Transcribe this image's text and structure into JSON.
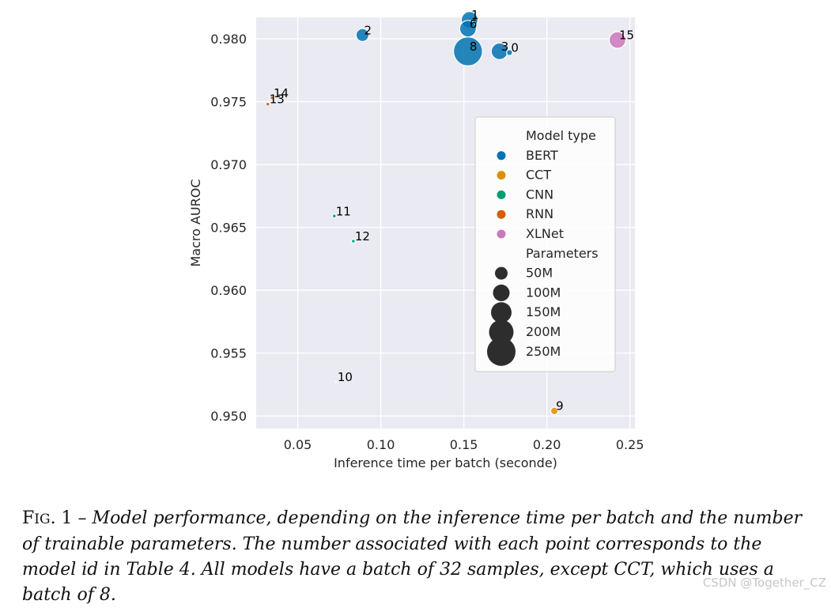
{
  "chart_data": {
    "type": "scatter",
    "xlabel": "Inference time per batch (seconde)",
    "ylabel": "Macro AUROC",
    "xlim": [
      0.025,
      0.253
    ],
    "ylim": [
      0.949,
      0.9817
    ],
    "xticks": [
      0.05,
      0.1,
      0.15,
      0.2,
      0.25
    ],
    "xtick_labels": [
      "0.05",
      "0.10",
      "0.15",
      "0.20",
      "0.25"
    ],
    "yticks": [
      0.95,
      0.955,
      0.96,
      0.965,
      0.97,
      0.975,
      0.98
    ],
    "ytick_labels": [
      "0.950",
      "0.955",
      "0.960",
      "0.965",
      "0.970",
      "0.975",
      "0.980"
    ],
    "grid": true,
    "legend_position": "center-right",
    "series": [
      {
        "name": "BERT",
        "color": "#0173b2",
        "points": [
          {
            "id": "1",
            "x": 0.1535,
            "y": 0.9815,
            "size": 110
          },
          {
            "id": "2",
            "x": 0.089,
            "y": 0.9803,
            "size": 66
          },
          {
            "id": "6",
            "x": 0.1525,
            "y": 0.9808,
            "size": 110
          },
          {
            "id": "8",
            "x": 0.1525,
            "y": 0.979,
            "size": 335
          },
          {
            "id": "3",
            "x": 0.1715,
            "y": 0.979,
            "size": 110
          },
          {
            "id": "0",
            "x": 0.1775,
            "y": 0.9789,
            "size": 14
          }
        ]
      },
      {
        "name": "CCT",
        "color": "#de8f05",
        "points": [
          {
            "id": "9",
            "x": 0.2045,
            "y": 0.9504,
            "size": 22
          }
        ]
      },
      {
        "name": "CNN",
        "color": "#029e73",
        "points": [
          {
            "id": "11",
            "x": 0.072,
            "y": 0.9659,
            "size": 6
          },
          {
            "id": "12",
            "x": 0.0835,
            "y": 0.9639,
            "size": 6
          },
          {
            "id": "10",
            "x": 0.073,
            "y": 0.9527,
            "size": 0.7
          }
        ]
      },
      {
        "name": "RNN",
        "color": "#d55e00",
        "points": [
          {
            "id": "14",
            "x": 0.0345,
            "y": 0.9753,
            "size": 6
          },
          {
            "id": "13",
            "x": 0.032,
            "y": 0.9748,
            "size": 6
          }
        ]
      },
      {
        "name": "XLNet",
        "color": "#cc78bc",
        "points": [
          {
            "id": "15",
            "x": 0.2425,
            "y": 0.9799,
            "size": 110
          }
        ]
      }
    ],
    "legend": {
      "hue_title": "Model type",
      "hue_entries": [
        "BERT",
        "CCT",
        "CNN",
        "RNN",
        "XLNet"
      ],
      "size_title": "Parameters",
      "size_entries": [
        {
          "label": "50M",
          "value": 50
        },
        {
          "label": "100M",
          "value": 100
        },
        {
          "label": "150M",
          "value": 150
        },
        {
          "label": "200M",
          "value": 200
        },
        {
          "label": "250M",
          "value": 250
        }
      ],
      "size_color": "#2d2d2d"
    }
  },
  "caption": {
    "fig_prefix_first": "F",
    "fig_prefix_rest": "IG",
    "fig_number": ". 1 –",
    "text": "Model performance, depending on the inference time per batch and the number of trainable parameters. The number associated with each point corresponds to the model id in Table 4. All models have a batch of 32 samples, except CCT, which uses a batch of 8."
  },
  "watermark": "CSDN @Together_CZ"
}
